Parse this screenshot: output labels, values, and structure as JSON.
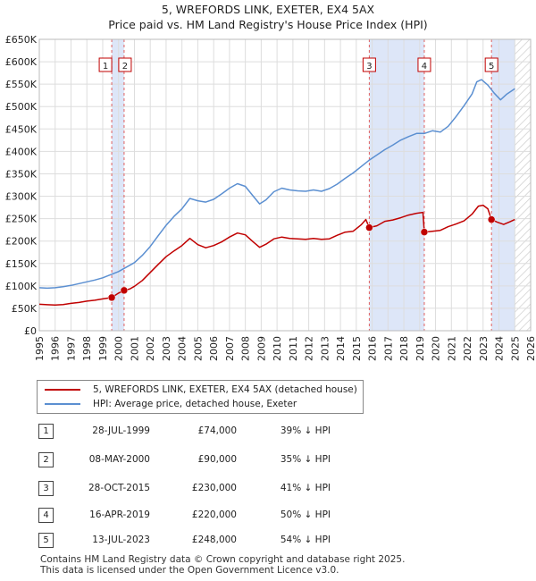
{
  "chart_data": {
    "type": "line",
    "title": "5, WREFORDS LINK, EXETER, EX4 5AX",
    "subtitle": "Price paid vs. HM Land Registry's House Price Index (HPI)",
    "xlim": [
      1995,
      2026
    ],
    "ylim": [
      0,
      650000
    ],
    "x_ticks": [
      1995,
      1996,
      1997,
      1998,
      1999,
      2000,
      2001,
      2002,
      2003,
      2004,
      2005,
      2006,
      2007,
      2008,
      2009,
      2010,
      2011,
      2012,
      2013,
      2014,
      2015,
      2016,
      2017,
      2018,
      2019,
      2020,
      2021,
      2022,
      2023,
      2024,
      2025,
      2026
    ],
    "y_ticks": [
      {
        "value": 0,
        "label": "£0"
      },
      {
        "value": 50000,
        "label": "£50K"
      },
      {
        "value": 100000,
        "label": "£100K"
      },
      {
        "value": 150000,
        "label": "£150K"
      },
      {
        "value": 200000,
        "label": "£200K"
      },
      {
        "value": 250000,
        "label": "£250K"
      },
      {
        "value": 300000,
        "label": "£300K"
      },
      {
        "value": 350000,
        "label": "£350K"
      },
      {
        "value": 400000,
        "label": "£400K"
      },
      {
        "value": 450000,
        "label": "£450K"
      },
      {
        "value": 500000,
        "label": "£500K"
      },
      {
        "value": 550000,
        "label": "£550K"
      },
      {
        "value": 600000,
        "label": "£600K"
      },
      {
        "value": 650000,
        "label": "£650K"
      }
    ],
    "shaded_ranges": [
      [
        1999.57,
        2000.35
      ],
      [
        2015.82,
        2019.29
      ],
      [
        2023.53,
        2025.0
      ]
    ],
    "future_hatch_from": 2025.0,
    "series": [
      {
        "name": "5, WREFORDS LINK, EXETER, EX4 5AX (detached house)",
        "color": "#c00000",
        "points": [
          [
            1995.0,
            59000
          ],
          [
            1995.5,
            58000
          ],
          [
            1996.0,
            57500
          ],
          [
            1996.5,
            58500
          ],
          [
            1997.0,
            61000
          ],
          [
            1997.5,
            63000
          ],
          [
            1998.0,
            66000
          ],
          [
            1998.5,
            68000
          ],
          [
            1999.0,
            71000
          ],
          [
            1999.57,
            74000
          ],
          [
            2000.0,
            84000
          ],
          [
            2000.35,
            90000
          ],
          [
            2000.7,
            93000
          ],
          [
            2001.0,
            99000
          ],
          [
            2001.5,
            112000
          ],
          [
            2002.0,
            130000
          ],
          [
            2002.5,
            148000
          ],
          [
            2003.0,
            165000
          ],
          [
            2003.5,
            178000
          ],
          [
            2004.0,
            190000
          ],
          [
            2004.5,
            206000
          ],
          [
            2005.0,
            192000
          ],
          [
            2005.5,
            185000
          ],
          [
            2006.0,
            190000
          ],
          [
            2006.5,
            198000
          ],
          [
            2007.0,
            209000
          ],
          [
            2007.5,
            218000
          ],
          [
            2008.0,
            214000
          ],
          [
            2008.5,
            198000
          ],
          [
            2008.9,
            186000
          ],
          [
            2009.3,
            193000
          ],
          [
            2009.8,
            205000
          ],
          [
            2010.3,
            209000
          ],
          [
            2010.8,
            206000
          ],
          [
            2011.3,
            205000
          ],
          [
            2011.8,
            204000
          ],
          [
            2012.3,
            206000
          ],
          [
            2012.8,
            204000
          ],
          [
            2013.3,
            205000
          ],
          [
            2013.8,
            213000
          ],
          [
            2014.3,
            220000
          ],
          [
            2014.8,
            222000
          ],
          [
            2015.3,
            236000
          ],
          [
            2015.6,
            248000
          ],
          [
            2015.82,
            230000
          ],
          [
            2016.3,
            234000
          ],
          [
            2016.8,
            244000
          ],
          [
            2017.3,
            247000
          ],
          [
            2017.8,
            252000
          ],
          [
            2018.3,
            258000
          ],
          [
            2018.8,
            262000
          ],
          [
            2019.2,
            264000
          ],
          [
            2019.29,
            220000
          ],
          [
            2019.8,
            222000
          ],
          [
            2020.3,
            224000
          ],
          [
            2020.8,
            232000
          ],
          [
            2021.3,
            238000
          ],
          [
            2021.8,
            245000
          ],
          [
            2022.3,
            260000
          ],
          [
            2022.7,
            278000
          ],
          [
            2023.0,
            280000
          ],
          [
            2023.3,
            272000
          ],
          [
            2023.53,
            248000
          ],
          [
            2023.9,
            242000
          ],
          [
            2024.3,
            237000
          ],
          [
            2024.7,
            243000
          ],
          [
            2025.0,
            248000
          ]
        ]
      },
      {
        "name": "HPI: Average price, detached house, Exeter",
        "color": "#5b8fd1",
        "points": [
          [
            1995.0,
            96000
          ],
          [
            1995.5,
            95000
          ],
          [
            1996.0,
            96000
          ],
          [
            1996.5,
            98000
          ],
          [
            1997.0,
            101000
          ],
          [
            1997.5,
            105000
          ],
          [
            1998.0,
            109000
          ],
          [
            1998.5,
            113000
          ],
          [
            1999.0,
            118000
          ],
          [
            1999.5,
            125000
          ],
          [
            2000.0,
            132000
          ],
          [
            2000.5,
            142000
          ],
          [
            2001.0,
            152000
          ],
          [
            2001.5,
            168000
          ],
          [
            2002.0,
            188000
          ],
          [
            2002.5,
            212000
          ],
          [
            2003.0,
            235000
          ],
          [
            2003.5,
            255000
          ],
          [
            2004.0,
            272000
          ],
          [
            2004.5,
            295000
          ],
          [
            2005.0,
            290000
          ],
          [
            2005.5,
            287000
          ],
          [
            2006.0,
            293000
          ],
          [
            2006.5,
            305000
          ],
          [
            2007.0,
            318000
          ],
          [
            2007.5,
            328000
          ],
          [
            2008.0,
            322000
          ],
          [
            2008.5,
            300000
          ],
          [
            2008.9,
            283000
          ],
          [
            2009.3,
            292000
          ],
          [
            2009.8,
            310000
          ],
          [
            2010.3,
            318000
          ],
          [
            2010.8,
            314000
          ],
          [
            2011.3,
            312000
          ],
          [
            2011.8,
            311000
          ],
          [
            2012.3,
            314000
          ],
          [
            2012.8,
            311000
          ],
          [
            2013.3,
            317000
          ],
          [
            2013.8,
            327000
          ],
          [
            2014.3,
            340000
          ],
          [
            2014.8,
            352000
          ],
          [
            2015.3,
            366000
          ],
          [
            2015.8,
            380000
          ],
          [
            2016.3,
            392000
          ],
          [
            2016.8,
            404000
          ],
          [
            2017.3,
            414000
          ],
          [
            2017.8,
            425000
          ],
          [
            2018.3,
            433000
          ],
          [
            2018.8,
            440000
          ],
          [
            2019.3,
            440000
          ],
          [
            2019.8,
            446000
          ],
          [
            2020.3,
            443000
          ],
          [
            2020.8,
            456000
          ],
          [
            2021.3,
            478000
          ],
          [
            2021.8,
            502000
          ],
          [
            2022.3,
            528000
          ],
          [
            2022.6,
            555000
          ],
          [
            2022.9,
            560000
          ],
          [
            2023.3,
            548000
          ],
          [
            2023.7,
            530000
          ],
          [
            2024.1,
            515000
          ],
          [
            2024.5,
            528000
          ],
          [
            2025.0,
            540000
          ]
        ]
      }
    ],
    "sales": [
      {
        "num": "1",
        "year": 1999.57,
        "price": 74000,
        "date": "28-JUL-1999",
        "price_label": "£74,000",
        "hpi_label": "39% ↓ HPI"
      },
      {
        "num": "2",
        "year": 2000.35,
        "price": 90000,
        "date": "08-MAY-2000",
        "price_label": "£90,000",
        "hpi_label": "35% ↓ HPI"
      },
      {
        "num": "3",
        "year": 2015.82,
        "price": 230000,
        "date": "28-OCT-2015",
        "price_label": "£230,000",
        "hpi_label": "41% ↓ HPI"
      },
      {
        "num": "4",
        "year": 2019.29,
        "price": 220000,
        "date": "16-APR-2019",
        "price_label": "£220,000",
        "hpi_label": "50% ↓ HPI"
      },
      {
        "num": "5",
        "year": 2023.53,
        "price": 248000,
        "date": "13-JUL-2023",
        "price_label": "£248,000",
        "hpi_label": "54% ↓ HPI"
      }
    ]
  },
  "legend": {
    "property_label": "5, WREFORDS LINK, EXETER, EX4 5AX (detached house)",
    "hpi_label": "HPI: Average price, detached house, Exeter"
  },
  "footer": {
    "line1": "Contains HM Land Registry data © Crown copyright and database right 2025.",
    "line2": "This data is licensed under the Open Government Licence v3.0."
  },
  "colors": {
    "property": "#c00000",
    "hpi": "#5b8fd1",
    "shade": "#dde6f8",
    "grid": "#dddddd"
  }
}
